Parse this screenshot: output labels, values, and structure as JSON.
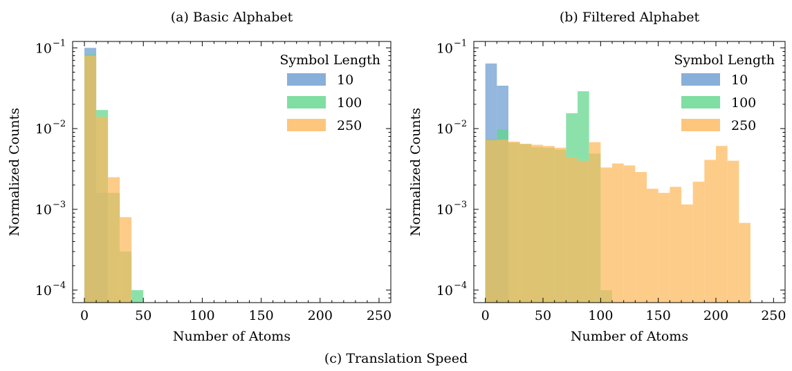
{
  "figure_caption": "(c) Translation Speed",
  "chart_data": [
    {
      "type": "bar",
      "title": "(a) Basic Alphabet",
      "xlabel": "Number of Atoms",
      "ylabel": "Normalized Counts",
      "xlim": [
        -10,
        260
      ],
      "ylim": [
        7e-05,
        0.12
      ],
      "yscale": "log",
      "xticks": [
        0,
        50,
        100,
        150,
        200,
        250
      ],
      "yticks": [
        {
          "value": 0.1,
          "base": "10",
          "exp": "−1"
        },
        {
          "value": 0.01,
          "base": "10",
          "exp": "−2"
        },
        {
          "value": 0.001,
          "base": "10",
          "exp": "−3"
        },
        {
          "value": 0.0001,
          "base": "10",
          "exp": "−4"
        }
      ],
      "legend": {
        "title": "Symbol Length",
        "position": "top-right"
      },
      "series": [
        {
          "name": "10",
          "color": "#6a9bd0",
          "bins": [
            {
              "x0": 0,
              "x1": 10,
              "y": 0.1
            },
            {
              "x0": 10,
              "x1": 20,
              "y": 0.0016
            }
          ]
        },
        {
          "name": "100",
          "color": "#5fd68a",
          "bins": [
            {
              "x0": 0,
              "x1": 10,
              "y": 0.083
            },
            {
              "x0": 10,
              "x1": 20,
              "y": 0.017
            },
            {
              "x0": 20,
              "x1": 30,
              "y": 0.0016
            },
            {
              "x0": 30,
              "x1": 40,
              "y": 0.0003
            },
            {
              "x0": 40,
              "x1": 50,
              "y": 0.0001
            }
          ]
        },
        {
          "name": "250",
          "color": "#fdb85c",
          "bins": [
            {
              "x0": 0,
              "x1": 10,
              "y": 0.08
            },
            {
              "x0": 10,
              "x1": 20,
              "y": 0.014
            },
            {
              "x0": 20,
              "x1": 30,
              "y": 0.0025
            },
            {
              "x0": 30,
              "x1": 40,
              "y": 0.0008
            }
          ]
        }
      ]
    },
    {
      "type": "bar",
      "title": "(b) Filtered Alphabet",
      "xlabel": "Number of Atoms",
      "ylabel": "Normalized Counts",
      "xlim": [
        -10,
        260
      ],
      "ylim": [
        7e-05,
        0.12
      ],
      "yscale": "log",
      "xticks": [
        0,
        50,
        100,
        150,
        200,
        250
      ],
      "yticks": [
        {
          "value": 0.1,
          "base": "10",
          "exp": "−1"
        },
        {
          "value": 0.01,
          "base": "10",
          "exp": "−2"
        },
        {
          "value": 0.001,
          "base": "10",
          "exp": "−3"
        },
        {
          "value": 0.0001,
          "base": "10",
          "exp": "−4"
        }
      ],
      "legend": {
        "title": "Symbol Length",
        "position": "top-right"
      },
      "series": [
        {
          "name": "10",
          "color": "#6a9bd0",
          "bins": [
            {
              "x0": 0,
              "x1": 10,
              "y": 0.064
            },
            {
              "x0": 10,
              "x1": 20,
              "y": 0.034
            }
          ]
        },
        {
          "name": "100",
          "color": "#5fd68a",
          "bins": [
            {
              "x0": 0,
              "x1": 10,
              "y": 0.0073
            },
            {
              "x0": 10,
              "x1": 20,
              "y": 0.0098
            },
            {
              "x0": 20,
              "x1": 30,
              "y": 0.0067
            },
            {
              "x0": 30,
              "x1": 40,
              "y": 0.0064
            },
            {
              "x0": 40,
              "x1": 50,
              "y": 0.0059
            },
            {
              "x0": 50,
              "x1": 60,
              "y": 0.0058
            },
            {
              "x0": 60,
              "x1": 70,
              "y": 0.0055
            },
            {
              "x0": 70,
              "x1": 80,
              "y": 0.0155
            },
            {
              "x0": 80,
              "x1": 90,
              "y": 0.029
            },
            {
              "x0": 90,
              "x1": 100,
              "y": 0.0049
            },
            {
              "x0": 100,
              "x1": 110,
              "y": 0.0001
            }
          ]
        },
        {
          "name": "250",
          "color": "#fdb85c",
          "bins": [
            {
              "x0": 0,
              "x1": 10,
              "y": 0.0072
            },
            {
              "x0": 10,
              "x1": 20,
              "y": 0.0073
            },
            {
              "x0": 20,
              "x1": 30,
              "y": 0.0069
            },
            {
              "x0": 30,
              "x1": 40,
              "y": 0.0065
            },
            {
              "x0": 40,
              "x1": 50,
              "y": 0.0063
            },
            {
              "x0": 50,
              "x1": 60,
              "y": 0.0061
            },
            {
              "x0": 60,
              "x1": 70,
              "y": 0.0058
            },
            {
              "x0": 70,
              "x1": 80,
              "y": 0.0044
            },
            {
              "x0": 80,
              "x1": 90,
              "y": 0.004
            },
            {
              "x0": 90,
              "x1": 100,
              "y": 0.0068
            },
            {
              "x0": 100,
              "x1": 110,
              "y": 0.0033
            },
            {
              "x0": 110,
              "x1": 120,
              "y": 0.0037
            },
            {
              "x0": 120,
              "x1": 130,
              "y": 0.0035
            },
            {
              "x0": 130,
              "x1": 140,
              "y": 0.0029
            },
            {
              "x0": 140,
              "x1": 150,
              "y": 0.0018
            },
            {
              "x0": 150,
              "x1": 160,
              "y": 0.0016
            },
            {
              "x0": 160,
              "x1": 170,
              "y": 0.0019
            },
            {
              "x0": 170,
              "x1": 180,
              "y": 0.00115
            },
            {
              "x0": 180,
              "x1": 190,
              "y": 0.0022
            },
            {
              "x0": 190,
              "x1": 200,
              "y": 0.0041
            },
            {
              "x0": 200,
              "x1": 210,
              "y": 0.0061
            },
            {
              "x0": 210,
              "x1": 220,
              "y": 0.004
            },
            {
              "x0": 220,
              "x1": 230,
              "y": 0.00068
            }
          ]
        }
      ]
    }
  ]
}
